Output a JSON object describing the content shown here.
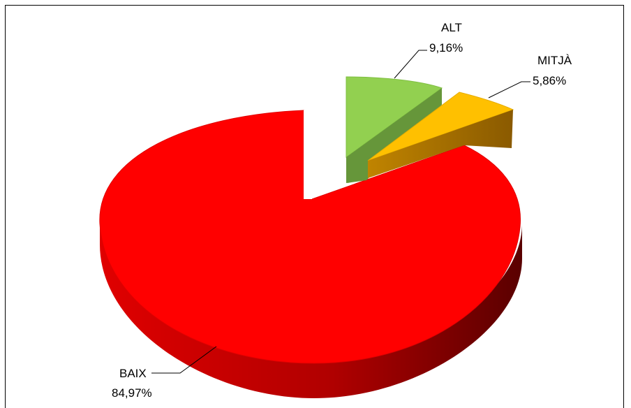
{
  "chart_data": {
    "type": "pie",
    "style": "3d-exploded",
    "title": "",
    "slices": [
      {
        "label": "BAIX",
        "value": 84.97,
        "value_label": "84,97%",
        "color": "#ff0000",
        "side_color": "#b00000"
      },
      {
        "label": "ALT",
        "value": 9.16,
        "value_label": "9,16%",
        "color": "#92d050",
        "side_color": "#5f8f32"
      },
      {
        "label": "MITJÀ",
        "value": 5.86,
        "value_label": "5,86%",
        "color": "#ffc000",
        "side_color": "#b07800"
      }
    ],
    "legend": "none",
    "data_labels": "outside-with-leader-lines"
  }
}
